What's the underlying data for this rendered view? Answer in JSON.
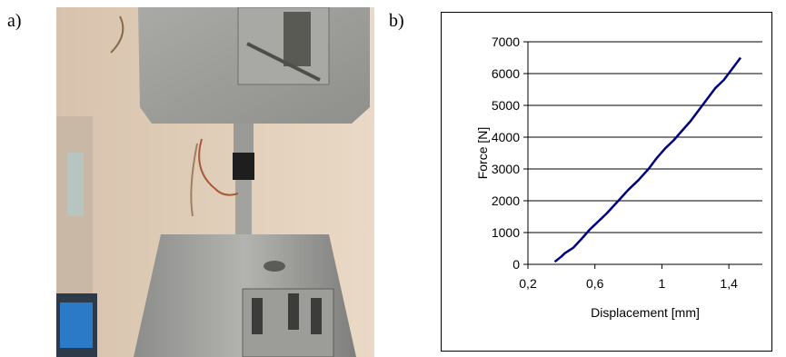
{
  "panel_labels": {
    "a": "a)",
    "b": "b)"
  },
  "chart_data": {
    "type": "line",
    "xlabel": "Displacement [mm]",
    "ylabel": "Force [N]",
    "xlim": [
      0.2,
      1.6
    ],
    "ylim": [
      0,
      7000
    ],
    "x_ticks": [
      0.2,
      0.6,
      1.0,
      1.4
    ],
    "x_tick_labels": [
      "0,2",
      "0,6",
      "1",
      "1,4"
    ],
    "y_ticks": [
      0,
      1000,
      2000,
      3000,
      4000,
      5000,
      6000,
      7000
    ],
    "y_tick_labels": [
      "0",
      "1000",
      "2000",
      "3000",
      "4000",
      "5000",
      "6000",
      "7000"
    ],
    "grid": "horizontal",
    "series": [
      {
        "color": "#000080",
        "x": [
          0.36,
          0.4,
          0.42,
          0.47,
          0.52,
          0.57,
          0.6,
          0.67,
          0.74,
          0.8,
          0.86,
          0.92,
          0.97,
          1.02,
          1.07,
          1.12,
          1.17,
          1.22,
          1.27,
          1.32,
          1.37,
          1.42,
          1.47
        ],
        "y": [
          80,
          250,
          350,
          520,
          800,
          1100,
          1250,
          1600,
          2000,
          2350,
          2650,
          3000,
          3350,
          3650,
          3900,
          4200,
          4500,
          4850,
          5200,
          5550,
          5800,
          6150,
          6500
        ]
      }
    ]
  }
}
